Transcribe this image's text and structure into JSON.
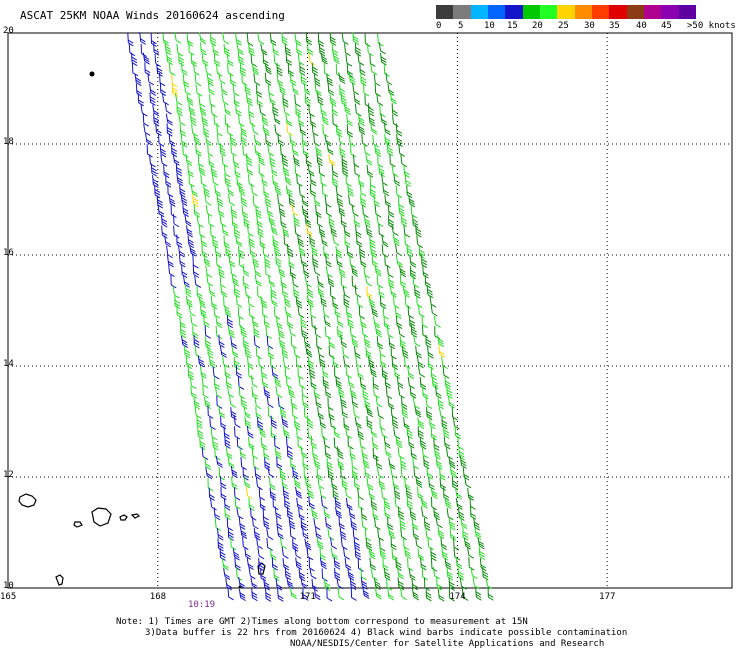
{
  "title": "ASCAT 25KM NOAA Winds 20160624 ascending",
  "colorbar": {
    "colors": [
      "#3c3c3c",
      "#7c7c7c",
      "#00b4ff",
      "#0064ff",
      "#1414c8",
      "#00c800",
      "#22ff22",
      "#ffd400",
      "#ff8c00",
      "#ff3c00",
      "#e00000",
      "#8c3c14",
      "#b00090",
      "#8a00b0",
      "#6000a0"
    ],
    "labels": [
      "0",
      "5",
      "10",
      "15",
      "20",
      "25",
      "30",
      "35",
      "40",
      "45",
      ">50 knots"
    ]
  },
  "axes": {
    "x_ticks": [
      "165",
      "168",
      "171",
      "174",
      "177"
    ],
    "y_ticks": [
      "20",
      "18",
      "16",
      "14",
      "12",
      "10"
    ],
    "lon_range": [
      165,
      179.5
    ],
    "lat_range": [
      10,
      20
    ]
  },
  "pass_time": "10:19",
  "notes": [
    "Note: 1) Times are GMT 2)Times along bottom correspond to measurement at 15N",
    "3)Data buffer is 22 hrs from 20160624 4) Black wind barbs indicate possible contamination",
    "NOAA/NESDIS/Center for Satellite Applications and Research"
  ],
  "swath": {
    "top_left": [
      167.4,
      20.0
    ],
    "top_right": [
      172.4,
      20.0
    ],
    "bottom_left": [
      169.4,
      10.0
    ],
    "bottom_right": [
      174.6,
      10.0
    ]
  },
  "colors": {
    "barb_green_light": "#22dd22",
    "barb_green_dark": "#0a8a0a",
    "barb_blue": "#1414c8",
    "barb_yellow": "#ffd400",
    "grid": "#000000"
  }
}
